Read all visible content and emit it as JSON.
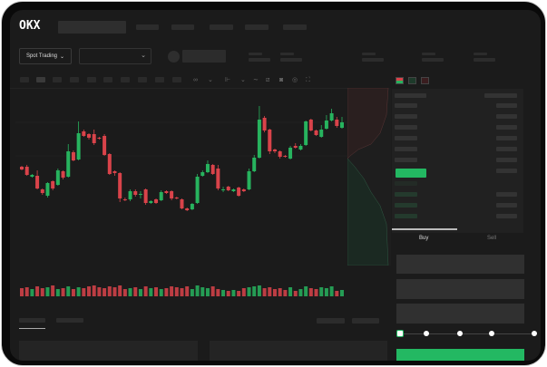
{
  "header": {
    "logo": "OKX"
  },
  "market": {
    "mode_button": "Spot Trading",
    "chevron": "⌄"
  },
  "trade_panel": {
    "buy_tab": "Buy",
    "sell_tab": "Sell",
    "slider_percent": 0
  },
  "colors": {
    "up": "#27b35e",
    "down": "#d9434a",
    "background": "#1b1b1b",
    "accent": "#23b862"
  },
  "chart_data": {
    "type": "candlestick",
    "candles": [
      [
        68,
        65,
        69,
        64
      ],
      [
        68,
        59,
        70,
        58
      ],
      [
        57,
        59,
        60,
        56
      ],
      [
        58,
        44,
        64,
        43
      ],
      [
        43,
        39,
        44,
        37
      ],
      [
        36,
        50,
        51,
        34
      ],
      [
        52,
        44,
        53,
        42
      ],
      [
        48,
        64,
        66,
        47
      ],
      [
        63,
        56,
        64,
        54
      ],
      [
        57,
        85,
        93,
        56
      ],
      [
        84,
        75,
        86,
        74
      ],
      [
        76,
        105,
        118,
        75
      ],
      [
        107,
        102,
        109,
        101
      ],
      [
        104,
        100,
        105,
        98
      ],
      [
        104,
        94,
        109,
        92
      ],
      [
        100,
        99,
        101,
        98
      ],
      [
        102,
        81,
        104,
        80
      ],
      [
        82,
        60,
        83,
        59
      ],
      [
        63,
        61,
        64,
        58
      ],
      [
        61,
        33,
        62,
        29
      ],
      [
        32,
        31,
        34,
        30
      ],
      [
        32,
        41,
        43,
        30
      ],
      [
        41,
        37,
        43,
        35
      ],
      [
        37,
        38,
        41,
        33
      ],
      [
        43,
        28,
        44,
        26
      ],
      [
        28,
        30,
        31,
        27
      ],
      [
        32,
        28,
        33,
        27
      ],
      [
        31,
        40,
        42,
        30
      ],
      [
        41,
        39,
        42,
        38
      ],
      [
        41,
        33,
        42,
        31
      ],
      [
        34,
        33,
        35,
        32
      ],
      [
        32,
        22,
        33,
        21
      ],
      [
        22,
        20,
        23,
        19
      ],
      [
        21,
        27,
        28,
        20
      ],
      [
        28,
        57,
        60,
        27
      ],
      [
        58,
        62,
        64,
        57
      ],
      [
        62,
        71,
        75,
        61
      ],
      [
        70,
        60,
        71,
        59
      ],
      [
        66,
        44,
        70,
        42
      ],
      [
        42,
        43,
        46,
        40
      ],
      [
        46,
        42,
        47,
        41
      ],
      [
        41,
        43,
        44,
        40
      ],
      [
        45,
        36,
        46,
        35
      ],
      [
        43,
        41,
        44,
        40
      ],
      [
        43,
        63,
        66,
        42
      ],
      [
        63,
        78,
        81,
        62
      ],
      [
        78,
        120,
        135,
        77
      ],
      [
        122,
        108,
        124,
        106
      ],
      [
        109,
        85,
        110,
        82
      ],
      [
        87,
        85,
        88,
        83
      ],
      [
        85,
        79,
        86,
        77
      ],
      [
        80,
        79,
        81,
        78
      ],
      [
        77,
        89,
        91,
        76
      ],
      [
        91,
        89,
        94,
        88
      ],
      [
        87,
        91,
        93,
        86
      ],
      [
        92,
        118,
        119,
        91
      ],
      [
        120,
        108,
        121,
        107
      ],
      [
        108,
        103,
        109,
        102
      ],
      [
        101,
        109,
        114,
        100
      ],
      [
        110,
        119,
        125,
        109
      ],
      [
        119,
        127,
        132,
        118
      ],
      [
        120,
        113,
        123,
        111
      ],
      [
        111,
        117,
        123,
        110
      ]
    ],
    "candle_format": [
      "open",
      "close",
      "high",
      "low"
    ],
    "volumes": [
      9,
      10,
      8,
      11,
      9,
      10,
      12,
      8,
      9,
      11,
      8,
      10,
      9,
      11,
      12,
      10,
      9,
      11,
      10,
      12,
      8,
      9,
      10,
      8,
      11,
      9,
      10,
      8,
      9,
      11,
      10,
      9,
      11,
      8,
      12,
      10,
      9,
      11,
      8,
      7,
      6,
      7,
      6,
      9,
      10,
      11,
      12,
      9,
      10,
      8,
      9,
      7,
      10,
      6,
      8,
      11,
      9,
      8,
      10,
      9,
      11,
      6,
      7
    ]
  }
}
